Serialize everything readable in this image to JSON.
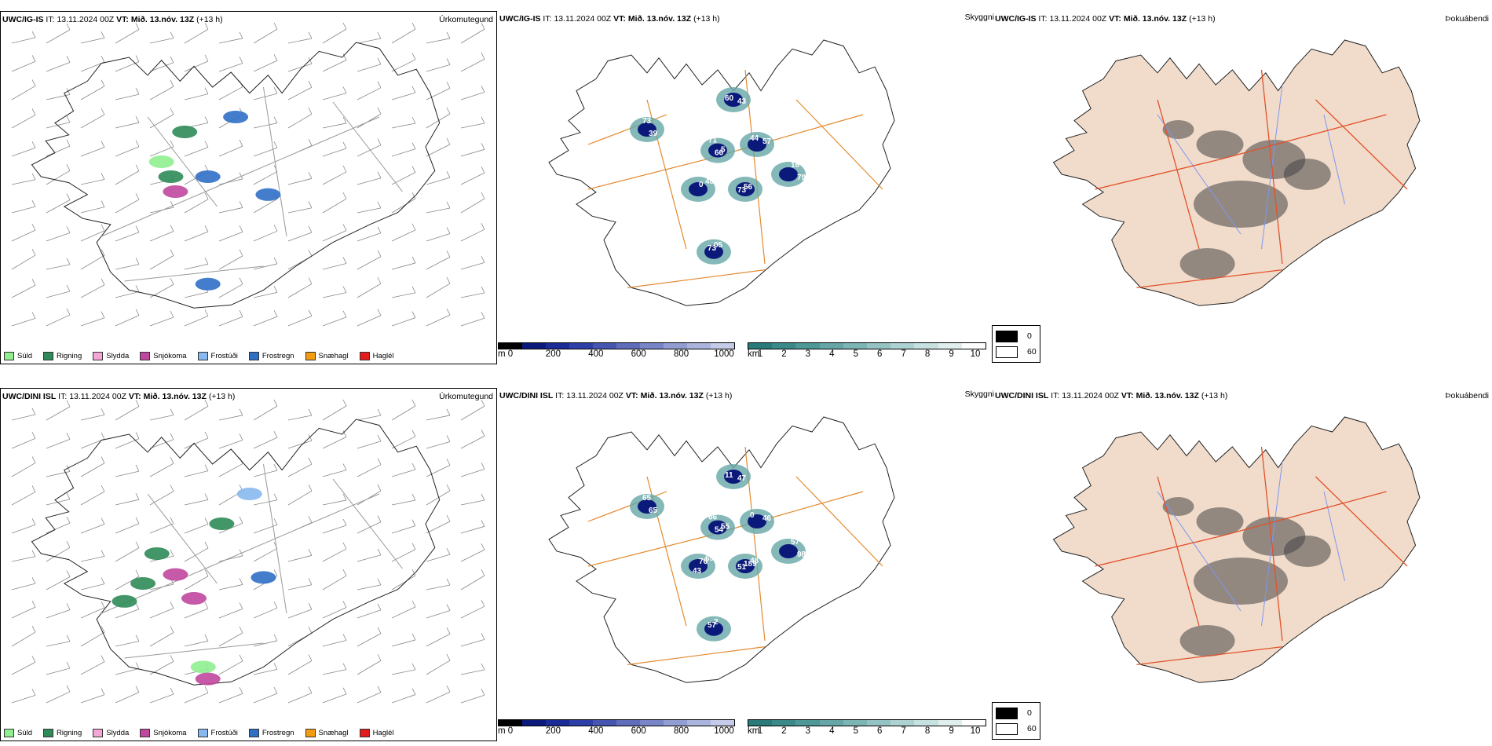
{
  "rows": [
    {
      "model": "UWC/IG-IS",
      "it_label": "IT:",
      "it_value": "13.11.2024 00Z",
      "vt_label": "VT:",
      "vt_value": "Mið. 13.nóv. 13Z",
      "lead": "(+13 h)",
      "cloud_labels": [
        "71",
        "0",
        "73",
        "16",
        "73",
        "43",
        "73",
        "57",
        "66",
        "48",
        "56",
        "79",
        "05",
        "60",
        "39",
        "44",
        "5"
      ]
    },
    {
      "model": "UWC/DINI ISL",
      "it_label": "IT:",
      "it_value": "13.11.2024 00Z",
      "vt_label": "VT:",
      "vt_value": "Mið. 13.nóv. 13Z",
      "lead": "(+13 h)",
      "cloud_labels": [
        "66",
        "76",
        "51",
        "57",
        "57",
        "47",
        "65",
        "46",
        "54",
        "69",
        "189",
        "98",
        "2",
        "11",
        "65",
        "0",
        "55",
        "43",
        "48"
      ]
    }
  ],
  "panel_titles": {
    "precip": "Úrkomutegund",
    "visibility": "Skyggni",
    "fog": "Þokuábendi"
  },
  "precip_legend": [
    {
      "label": "Súld",
      "color": "#90ee90"
    },
    {
      "label": "Rigning",
      "color": "#2e8b57"
    },
    {
      "label": "Slydda",
      "color": "#f4a6d7"
    },
    {
      "label": "Snjókoma",
      "color": "#c0479f"
    },
    {
      "label": "Frostúði",
      "color": "#87b8ef"
    },
    {
      "label": "Frostregn",
      "color": "#2f6fc6"
    },
    {
      "label": "Snæhagl",
      "color": "#f39c12"
    },
    {
      "label": "Haglél",
      "color": "#e31b1b"
    }
  ],
  "cloudbase_scale": {
    "unit": "m",
    "ticks": [
      "0",
      "200",
      "400",
      "600",
      "800",
      "1000"
    ],
    "colors": [
      "#000000",
      "#0b1a7a",
      "#1a2a96",
      "#2d3ea6",
      "#4656b0",
      "#5f6dbb",
      "#7885c6",
      "#929ed1",
      "#aab4dc",
      "#c5cbe8"
    ]
  },
  "visibility_scale": {
    "unit": "km",
    "ticks": [
      "1",
      "2",
      "3",
      "4",
      "5",
      "6",
      "7",
      "8",
      "9",
      "10"
    ],
    "colors": [
      "#2a7a7a",
      "#3b8a8a",
      "#4f9898",
      "#66a6a6",
      "#7db4b4",
      "#95c3c3",
      "#aed2d2",
      "#c7e0e0",
      "#e0eeee",
      "#ffffff"
    ]
  },
  "fog_key": [
    {
      "label": "0",
      "color": "#000000"
    },
    {
      "label": "60",
      "color": "#ffffff"
    }
  ]
}
